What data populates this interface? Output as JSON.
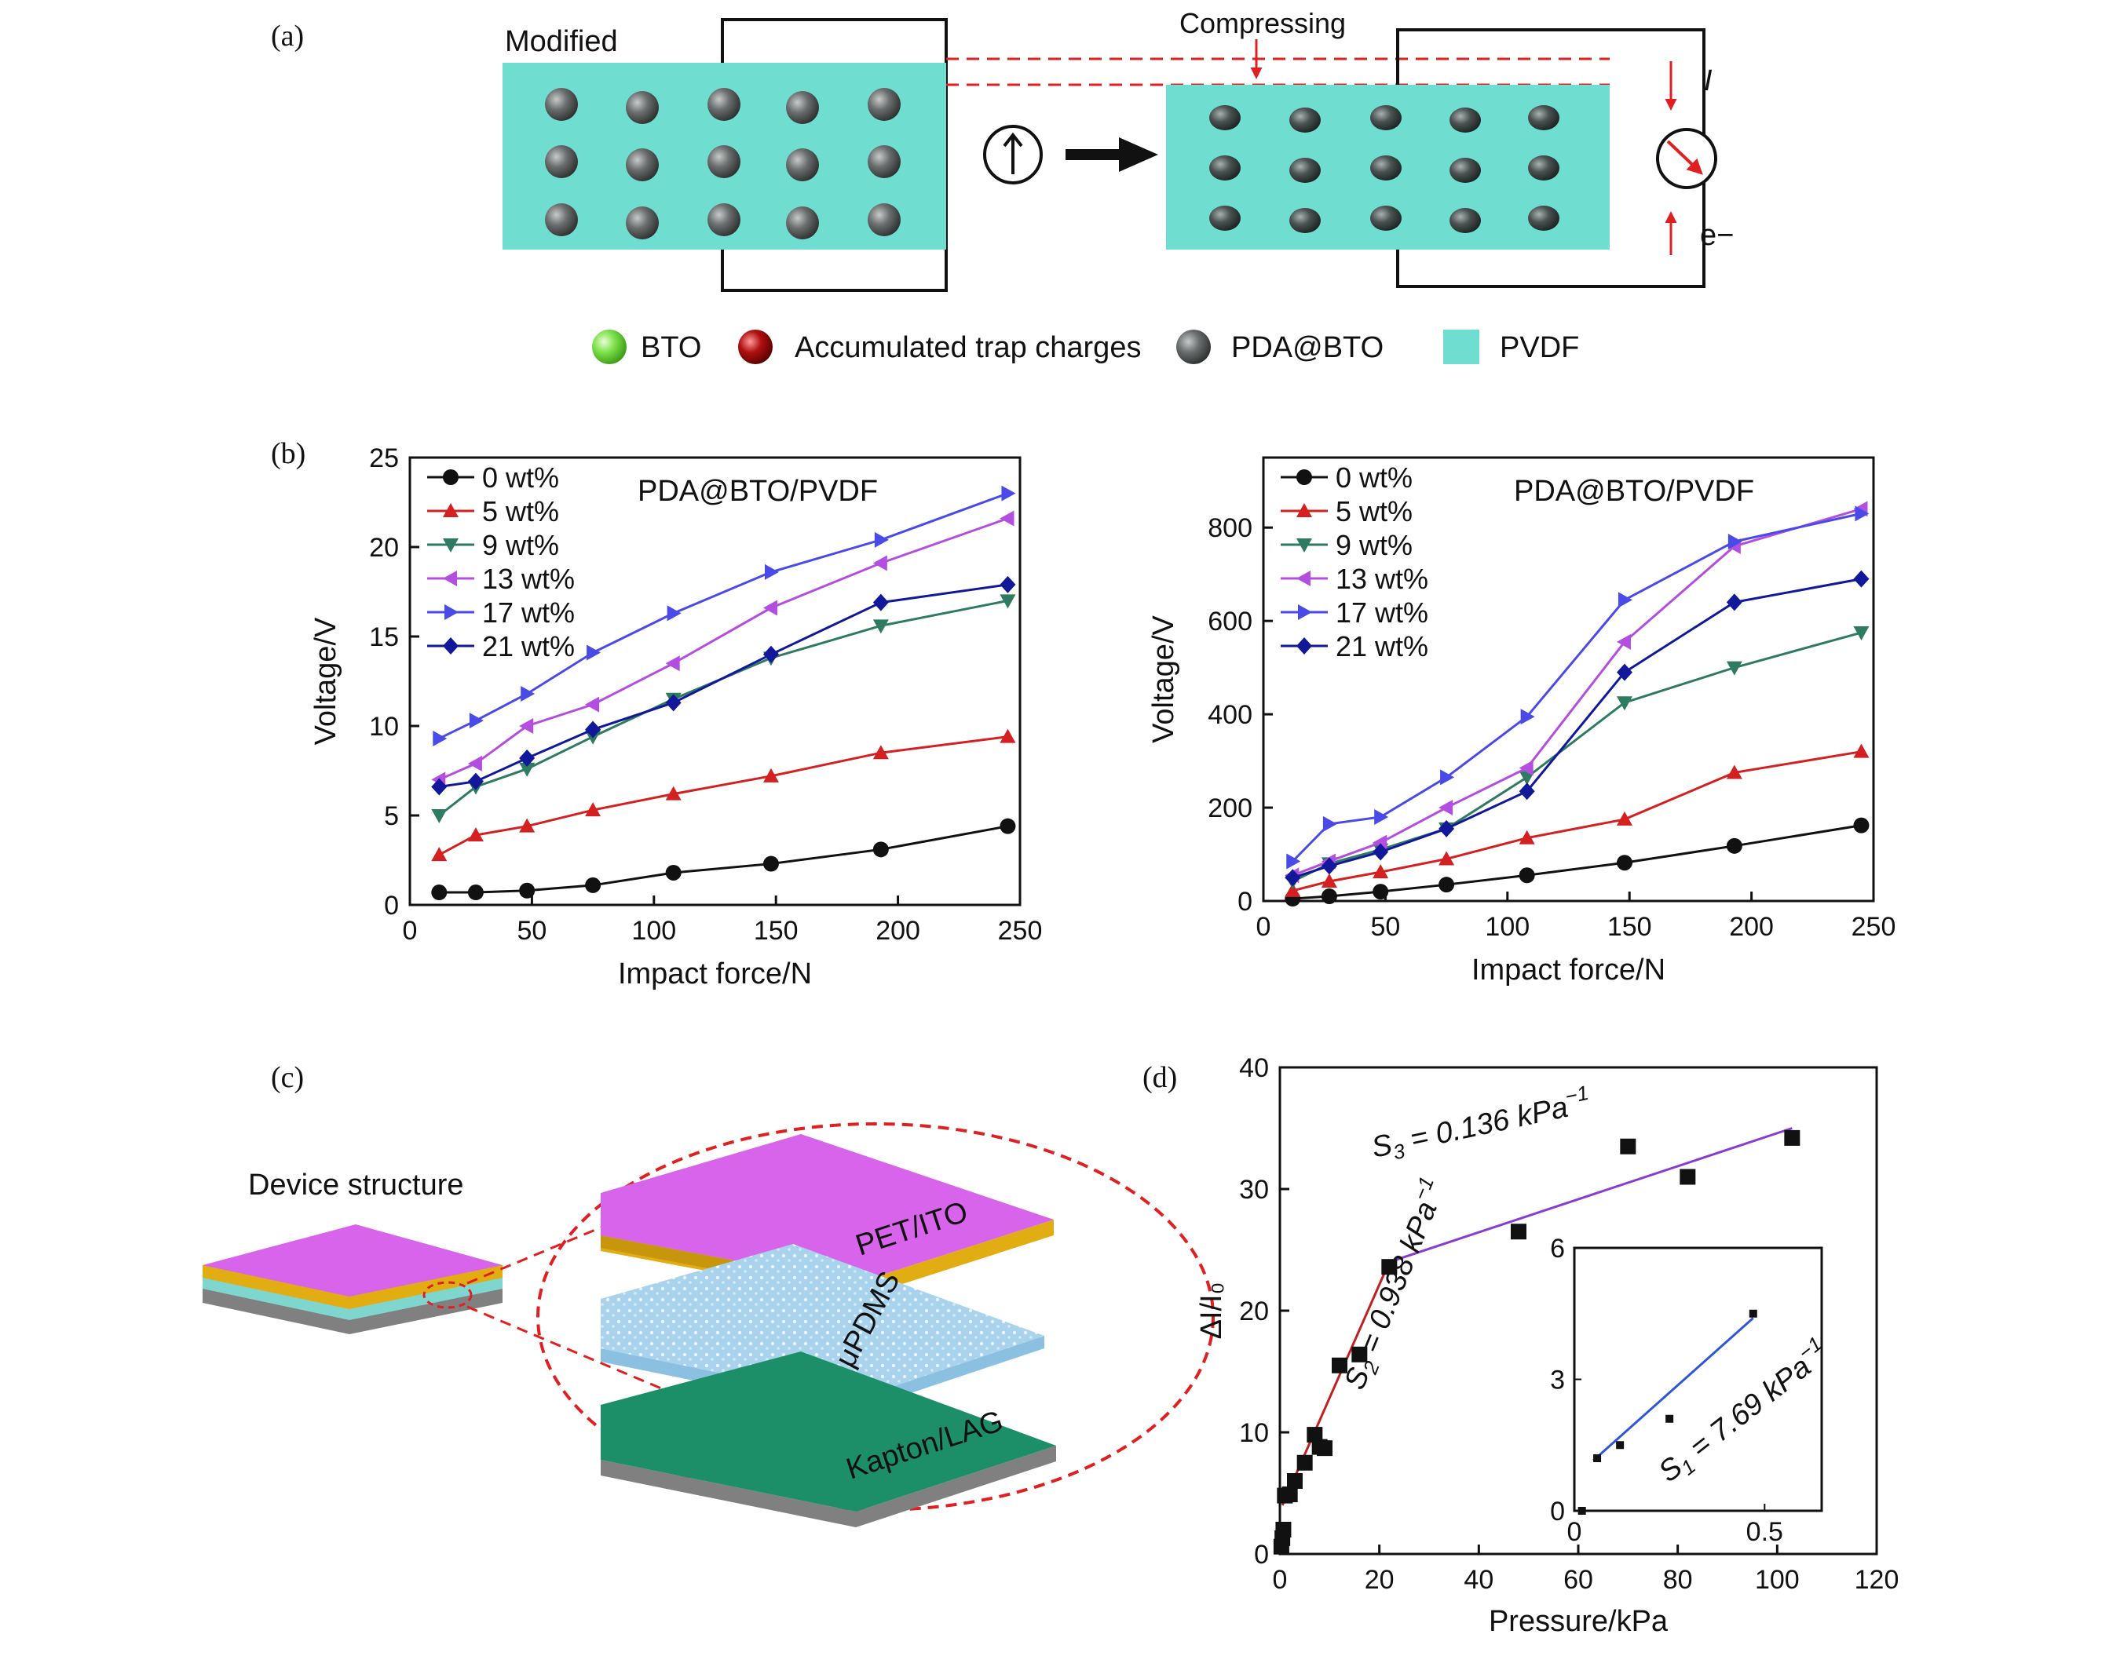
{
  "panel_labels": {
    "a": "(a)",
    "b": "(b)",
    "c": "(c)",
    "d": "(d)"
  },
  "panel_a": {
    "label_left": "Modified",
    "label_right": "Compressing",
    "current_label": "I",
    "electron_label": "e−",
    "legend": [
      {
        "label": "BTO",
        "color": "#7ee04a"
      },
      {
        "label": "Accumulated trap charges",
        "color": "#b01010"
      },
      {
        "label": "PDA@BTO",
        "color": "#6b6e6e"
      },
      {
        "label": "PVDF",
        "color": "#6fded0"
      }
    ]
  },
  "panel_c": {
    "caption": "Device structure",
    "layers": [
      "PET/ITO",
      "μPDMS",
      "Kapton/LAG"
    ],
    "colors": {
      "pet": "#d764ea",
      "ito": "#e1ad13",
      "pdms": "#a9d3ec",
      "kapton": "#1d8f68",
      "base": "#808080"
    }
  },
  "chart_data": [
    {
      "type": "line",
      "title": "PDA@BTO/PVDF",
      "xlabel": "Impact force/N",
      "ylabel": "Voltage/V",
      "xlim": [
        0,
        250
      ],
      "ylim": [
        0,
        25
      ],
      "xticks": [
        0,
        50,
        100,
        150,
        200,
        250
      ],
      "yticks": [
        0,
        5,
        10,
        15,
        20,
        25
      ],
      "x": [
        12,
        27,
        48,
        75,
        108,
        148,
        193,
        245
      ],
      "legend_position": "top-left",
      "series": [
        {
          "name": "0 wt%",
          "marker": "circle",
          "color": "#111111",
          "values": [
            0.7,
            0.7,
            0.8,
            1.1,
            1.8,
            2.3,
            3.1,
            4.4
          ]
        },
        {
          "name": "5 wt%",
          "marker": "triangle-up",
          "color": "#d42020",
          "values": [
            2.8,
            3.9,
            4.4,
            5.3,
            6.2,
            7.2,
            8.5,
            9.4
          ]
        },
        {
          "name": "9 wt%",
          "marker": "triangle-down",
          "color": "#2e7b62",
          "values": [
            5.0,
            6.6,
            7.6,
            9.4,
            11.5,
            13.8,
            15.6,
            17.0
          ]
        },
        {
          "name": "13 wt%",
          "marker": "triangle-left",
          "color": "#b44ee0",
          "values": [
            7.0,
            7.9,
            10.0,
            11.2,
            13.5,
            16.6,
            19.1,
            21.6
          ]
        },
        {
          "name": "17 wt%",
          "marker": "triangle-right",
          "color": "#4a4ae8",
          "values": [
            9.3,
            10.3,
            11.8,
            14.1,
            16.3,
            18.6,
            20.4,
            23.0
          ]
        },
        {
          "name": "21 wt%",
          "marker": "diamond",
          "color": "#12189a",
          "values": [
            6.6,
            6.9,
            8.2,
            9.8,
            11.3,
            14.0,
            16.9,
            17.9
          ]
        }
      ]
    },
    {
      "type": "line",
      "title": "PDA@BTO/PVDF",
      "xlabel": "Impact force/N",
      "ylabel": "Voltage/V",
      "xlim": [
        0,
        250
      ],
      "ylim": [
        0,
        950
      ],
      "xticks": [
        0,
        50,
        100,
        150,
        200,
        250
      ],
      "yticks": [
        0,
        200,
        400,
        600,
        800
      ],
      "x": [
        12,
        27,
        48,
        75,
        108,
        148,
        193,
        245
      ],
      "legend_position": "top-left",
      "series": [
        {
          "name": "0 wt%",
          "marker": "circle",
          "color": "#111111",
          "values": [
            5,
            10,
            20,
            35,
            55,
            82,
            118,
            162
          ]
        },
        {
          "name": "5 wt%",
          "marker": "triangle-up",
          "color": "#d42020",
          "values": [
            22,
            42,
            62,
            90,
            135,
            175,
            275,
            320
          ]
        },
        {
          "name": "9 wt%",
          "marker": "triangle-down",
          "color": "#2e7b62",
          "values": [
            42,
            80,
            110,
            155,
            265,
            425,
            500,
            575
          ]
        },
        {
          "name": "13 wt%",
          "marker": "triangle-left",
          "color": "#b44ee0",
          "values": [
            55,
            85,
            125,
            200,
            285,
            555,
            760,
            840
          ]
        },
        {
          "name": "17 wt%",
          "marker": "triangle-right",
          "color": "#4a4ae8",
          "values": [
            85,
            165,
            180,
            265,
            395,
            645,
            770,
            830
          ]
        },
        {
          "name": "21 wt%",
          "marker": "diamond",
          "color": "#12189a",
          "values": [
            50,
            75,
            105,
            155,
            235,
            490,
            640,
            690
          ]
        }
      ]
    },
    {
      "type": "scatter",
      "xlabel": "Pressure/kPa",
      "ylabel": "ΔI/I₀",
      "xlim": [
        0,
        120
      ],
      "ylim": [
        0,
        40
      ],
      "xticks": [
        0,
        20,
        40,
        60,
        80,
        100,
        120
      ],
      "yticks": [
        0,
        10,
        20,
        30,
        40
      ],
      "points": [
        [
          0.3,
          0.6
        ],
        [
          0.5,
          1.3
        ],
        [
          0.7,
          2.0
        ],
        [
          1.0,
          4.8
        ],
        [
          2.0,
          4.9
        ],
        [
          3.0,
          6.0
        ],
        [
          5.0,
          7.5
        ],
        [
          7.0,
          9.8
        ],
        [
          8.0,
          8.8
        ],
        [
          9.0,
          8.7
        ],
        [
          12.0,
          15.5
        ],
        [
          16.0,
          16.4
        ],
        [
          22.0,
          23.6
        ],
        [
          48.0,
          26.5
        ],
        [
          70.0,
          33.5
        ],
        [
          82.0,
          31.0
        ],
        [
          103.0,
          34.2
        ]
      ],
      "fits": [
        {
          "label": "S2 = 0.938 kPa⁻¹",
          "color": "#c02020",
          "points": [
            [
              0.5,
              4.0
            ],
            [
              22.0,
              24.0
            ]
          ]
        },
        {
          "label": "S3 = 0.136 kPa⁻¹",
          "color": "#8a3bd0",
          "points": [
            [
              22.0,
              24.0
            ],
            [
              103.0,
              35.0
            ]
          ]
        }
      ],
      "annotations": [
        {
          "prefix": "S",
          "sub": "3",
          "text": " = 0.136 kPa",
          "sup": "−1"
        },
        {
          "prefix": "S",
          "sub": "2",
          "text": " = 0.938 kPa",
          "sup": "−1"
        }
      ],
      "inset": {
        "xlim": [
          0,
          0.65
        ],
        "ylim": [
          0,
          6
        ],
        "xticks": [
          0,
          0.5
        ],
        "yticks": [
          0,
          3,
          6
        ],
        "points": [
          [
            0.02,
            0.0
          ],
          [
            0.06,
            1.2
          ],
          [
            0.12,
            1.5
          ],
          [
            0.25,
            2.1
          ],
          [
            0.47,
            4.5
          ]
        ],
        "fit": {
          "color": "#2d57d8",
          "points": [
            [
              0.05,
              1.15
            ],
            [
              0.47,
              4.4
            ]
          ]
        },
        "annotation": {
          "prefix": "S",
          "sub": "1",
          "text": " = 7.69 kPa",
          "sup": "−1"
        }
      }
    }
  ]
}
